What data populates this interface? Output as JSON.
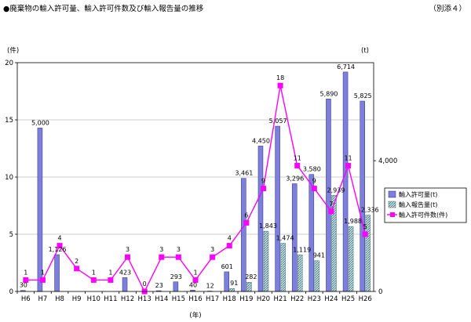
{
  "header": {
    "title": "●廃棄物の輸入許可量、輸入許可件数及び輸入報告量の推移",
    "ref": "（別添４）"
  },
  "chart_data": {
    "type": "bar",
    "categories": [
      "H6",
      "H7",
      "H8",
      "H9",
      "H10",
      "H11",
      "H12",
      "H13",
      "H14",
      "H15",
      "H16",
      "H17",
      "H18",
      "H19",
      "H20",
      "H21",
      "H22",
      "H23",
      "H24",
      "H25",
      "H26"
    ],
    "left_axis": {
      "unit": "(件)",
      "ylim": [
        0,
        20
      ],
      "ticks": [
        "0",
        "5",
        "10",
        "15",
        "20"
      ]
    },
    "right_axis": {
      "unit": "(t)",
      "ylim": [
        0,
        7000
      ],
      "ticks": [
        {
          "value": 0,
          "label": "0"
        },
        {
          "value": 4000,
          "label": "4,000"
        }
      ]
    },
    "xlabel": "(年)",
    "legend_position": "right",
    "series": [
      {
        "name": "輸入許可量(t)",
        "type": "bar",
        "axis": "right",
        "color": "#7d7fdc",
        "values": [
          30,
          5000,
          1126,
          0,
          0,
          0,
          423,
          0,
          23,
          293,
          40,
          12,
          601,
          3461,
          4450,
          5057,
          3296,
          3580,
          5890,
          6714,
          5825
        ],
        "labels": [
          "30",
          "5,000",
          "1,126",
          "",
          "",
          "",
          "423",
          "",
          "23",
          "293",
          "40",
          "12",
          "601",
          "3,461",
          "4,450",
          "5,057",
          "3,296",
          "3,580",
          "5,890",
          "6,714",
          "5,825"
        ]
      },
      {
        "name": "輸入報告量(t)",
        "type": "bar",
        "axis": "right",
        "color": "#9fc9cf",
        "values": [
          0,
          0,
          0,
          0,
          0,
          0,
          0,
          0,
          0,
          0,
          0,
          0,
          91,
          282,
          1843,
          1474,
          1119,
          941,
          2939,
          1988,
          2336
        ],
        "labels": [
          "",
          "",
          "",
          "",
          "",
          "",
          "",
          "",
          "",
          "",
          "",
          "",
          "91",
          "282",
          "1,843",
          "1,474",
          "1,119",
          "941",
          "2,939",
          "1,988",
          "2,336"
        ]
      },
      {
        "name": "輸入許可件数(件)",
        "type": "line",
        "axis": "left",
        "color": "#ff00ff",
        "values": [
          1,
          1,
          4,
          2,
          1,
          1,
          3,
          0,
          3,
          3,
          1,
          3,
          4,
          6,
          9,
          18,
          11,
          9,
          7,
          11,
          5
        ],
        "labels": [
          "1",
          "1",
          "4",
          "2",
          "1",
          "1",
          "3",
          "0",
          "3",
          "3",
          "1",
          "3",
          "4",
          "6",
          "9",
          "18",
          "11",
          "9",
          "7",
          "11",
          "5"
        ]
      }
    ]
  }
}
